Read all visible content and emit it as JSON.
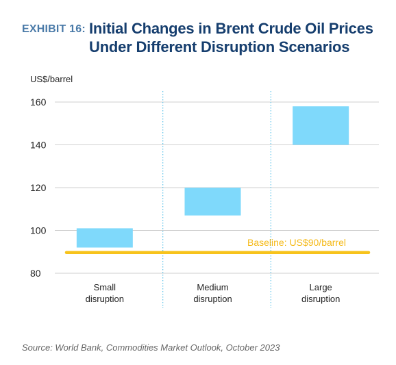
{
  "header": {
    "exhibit_label": "EXHIBIT 16:",
    "title_line1": "Initial Changes in Brent Crude Oil Prices",
    "title_line2": "Under Different Disruption Scenarios"
  },
  "colors": {
    "bar": "#7fd9fb",
    "baseline": "#f7c31c",
    "grid": "#cfcfcf",
    "divider": "#5fc4ea",
    "title": "#163e6e",
    "exhibit": "#4a7aa8"
  },
  "chart_data": {
    "type": "bar",
    "subtype": "floating-range",
    "ylabel": "US$/barrel",
    "ylim": [
      80,
      160
    ],
    "yticks": [
      80,
      100,
      120,
      140,
      160
    ],
    "grid": true,
    "categories": [
      [
        "Small",
        "disruption"
      ],
      [
        "Medium",
        "disruption"
      ],
      [
        "Large",
        "disruption"
      ]
    ],
    "ranges": [
      {
        "low": 92,
        "high": 101
      },
      {
        "low": 107,
        "high": 120
      },
      {
        "low": 140,
        "high": 158
      }
    ],
    "baseline": {
      "value": 90,
      "label": "Baseline: US$90/barrel"
    }
  },
  "source": "Source: World Bank, Commodities Market Outlook, October 2023"
}
